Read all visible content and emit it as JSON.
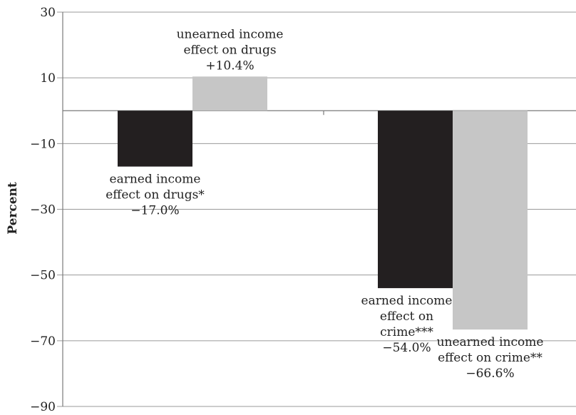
{
  "chart_data": {
    "type": "bar",
    "ylabel": "Percent",
    "ylim": [
      -90,
      30
    ],
    "yticks": [
      30,
      10,
      -10,
      -30,
      -50,
      -70,
      -90
    ],
    "ytick_labels": [
      "30",
      "10",
      "−10",
      "−30",
      "−50",
      "−70",
      "−90"
    ],
    "grid": true,
    "bars": [
      {
        "group": 0,
        "slot": 0,
        "value": -17.0,
        "color": "#231f20",
        "label": [
          "earned income",
          "effect on drugs*",
          "−17.0%"
        ],
        "label_anchor": "below"
      },
      {
        "group": 0,
        "slot": 1,
        "value": 10.4,
        "color": "#c6c6c6",
        "label": [
          "unearned income",
          "effect on drugs",
          "+10.4%"
        ],
        "label_anchor": "above"
      },
      {
        "group": 1,
        "slot": 0,
        "value": -54.0,
        "color": "#231f20",
        "label": [
          "earned income",
          "effect on",
          "crime***",
          "−54.0%"
        ],
        "label_anchor": "below"
      },
      {
        "group": 1,
        "slot": 1,
        "value": -66.6,
        "color": "#c6c6c6",
        "label": [
          "unearned income",
          "effect on crime**",
          "−66.6%"
        ],
        "label_anchor": "below"
      }
    ]
  }
}
